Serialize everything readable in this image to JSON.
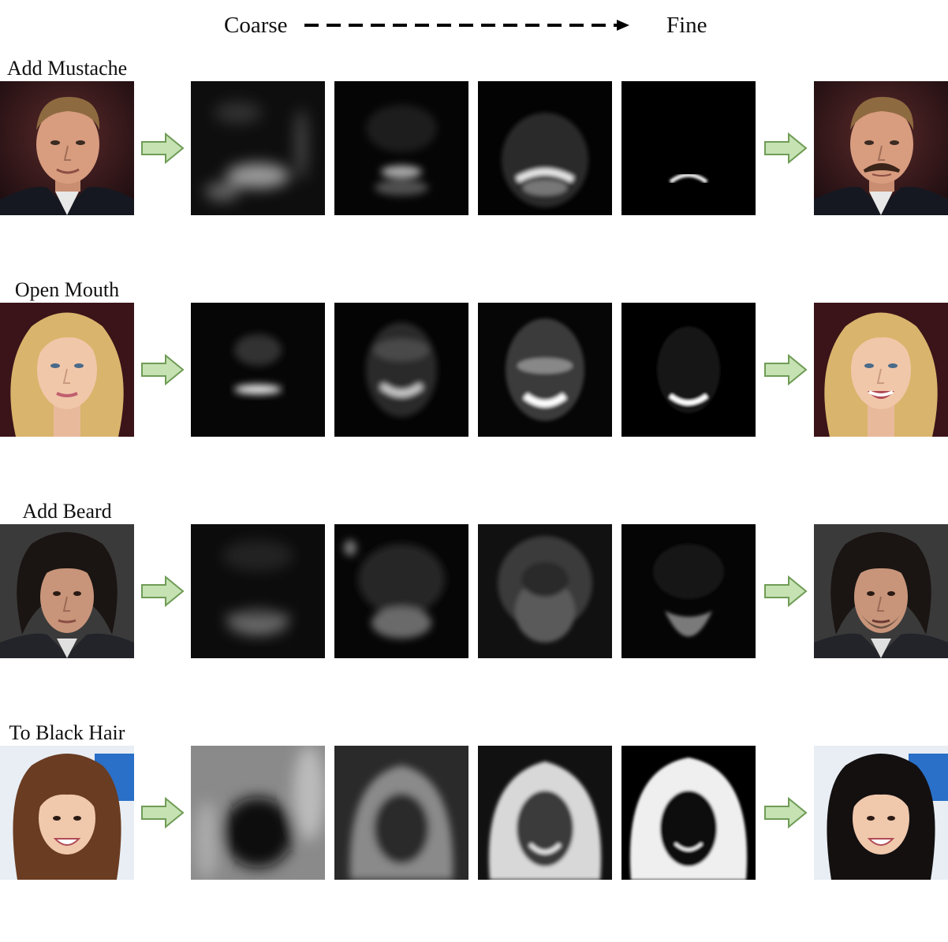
{
  "header": {
    "coarse_label": "Coarse",
    "fine_label": "Fine"
  },
  "rows": [
    {
      "label": "Add Mustache",
      "input": "blond-haired man in dark suit",
      "output": "same man with mustache"
    },
    {
      "label": "Open Mouth",
      "input": "blonde woman, mouth closed",
      "output": "same woman smiling with open mouth"
    },
    {
      "label": "Add Beard",
      "input": "dark-haired older man",
      "output": "same man with beard stubble"
    },
    {
      "label": "To Black Hair",
      "input": "woman with brown hair, blue background",
      "output": "same woman with black hair"
    }
  ],
  "colors": {
    "arrow_fill": "#c6e2b3",
    "arrow_stroke": "#6f9c56"
  }
}
